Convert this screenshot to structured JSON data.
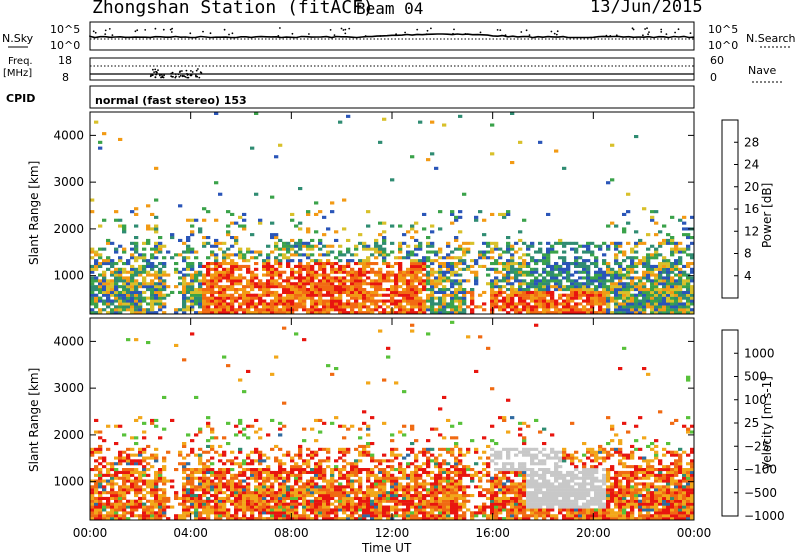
{
  "header": {
    "station": "Zhongshan Station (fitACF)",
    "beam": "Beam 04",
    "date": "13/Jun/2015"
  },
  "summary_panels": {
    "top_left_label": "N.Sky",
    "top_left_ticks": [
      "10^5",
      "10^0"
    ],
    "top_right_label": "N.Search",
    "top_right_ticks": [
      "10^5",
      "10^0"
    ],
    "freq_label_line1": "Freq.",
    "freq_label_line2": "[MHz]",
    "freq_ticks": [
      "18",
      "8"
    ],
    "nave_label": "Nave",
    "nave_ticks": [
      "60",
      "0"
    ],
    "cpid_label": "CPID",
    "cpid_text": "normal (fast stereo) 153"
  },
  "chart_data": [
    {
      "type": "heatmap",
      "name": "power",
      "ylabel": "Slant Range [km]",
      "yticks": [
        "4000",
        "3000",
        "2000",
        "1000"
      ],
      "ylim": [
        180,
        4500
      ],
      "colorbar_label": "Power [dB]",
      "colorbar_ticks": [
        "28",
        "24",
        "20",
        "16",
        "12",
        "8",
        "4"
      ],
      "colorbar_colors": [
        "#0a1eef",
        "#2a55b8",
        "#2f8c72",
        "#3aa24a",
        "#d8c02a",
        "#f29a14",
        "#f26a12",
        "#e8150f"
      ]
    },
    {
      "type": "heatmap",
      "name": "velocity",
      "ylabel": "Slant Range [km]",
      "yticks": [
        "4000",
        "3000",
        "2000",
        "1000"
      ],
      "ylim": [
        180,
        4500
      ],
      "colorbar_label": "Velocity [m s-1]",
      "colorbar_ticks": [
        "1000",
        "500",
        "100",
        "25",
        "−25",
        "−100",
        "−500",
        "−1000"
      ],
      "colorbar_colors": [
        "#2040c8",
        "#2f6aa0",
        "#2f8c72",
        "#58c13a",
        "#c8c8c8",
        "#f2a71a",
        "#f06a12",
        "#e8150f"
      ]
    }
  ],
  "xaxis": {
    "ticks": [
      "00:00",
      "04:00",
      "08:00",
      "12:00",
      "16:00",
      "20:00",
      "00:00"
    ],
    "label": "Time UT"
  }
}
